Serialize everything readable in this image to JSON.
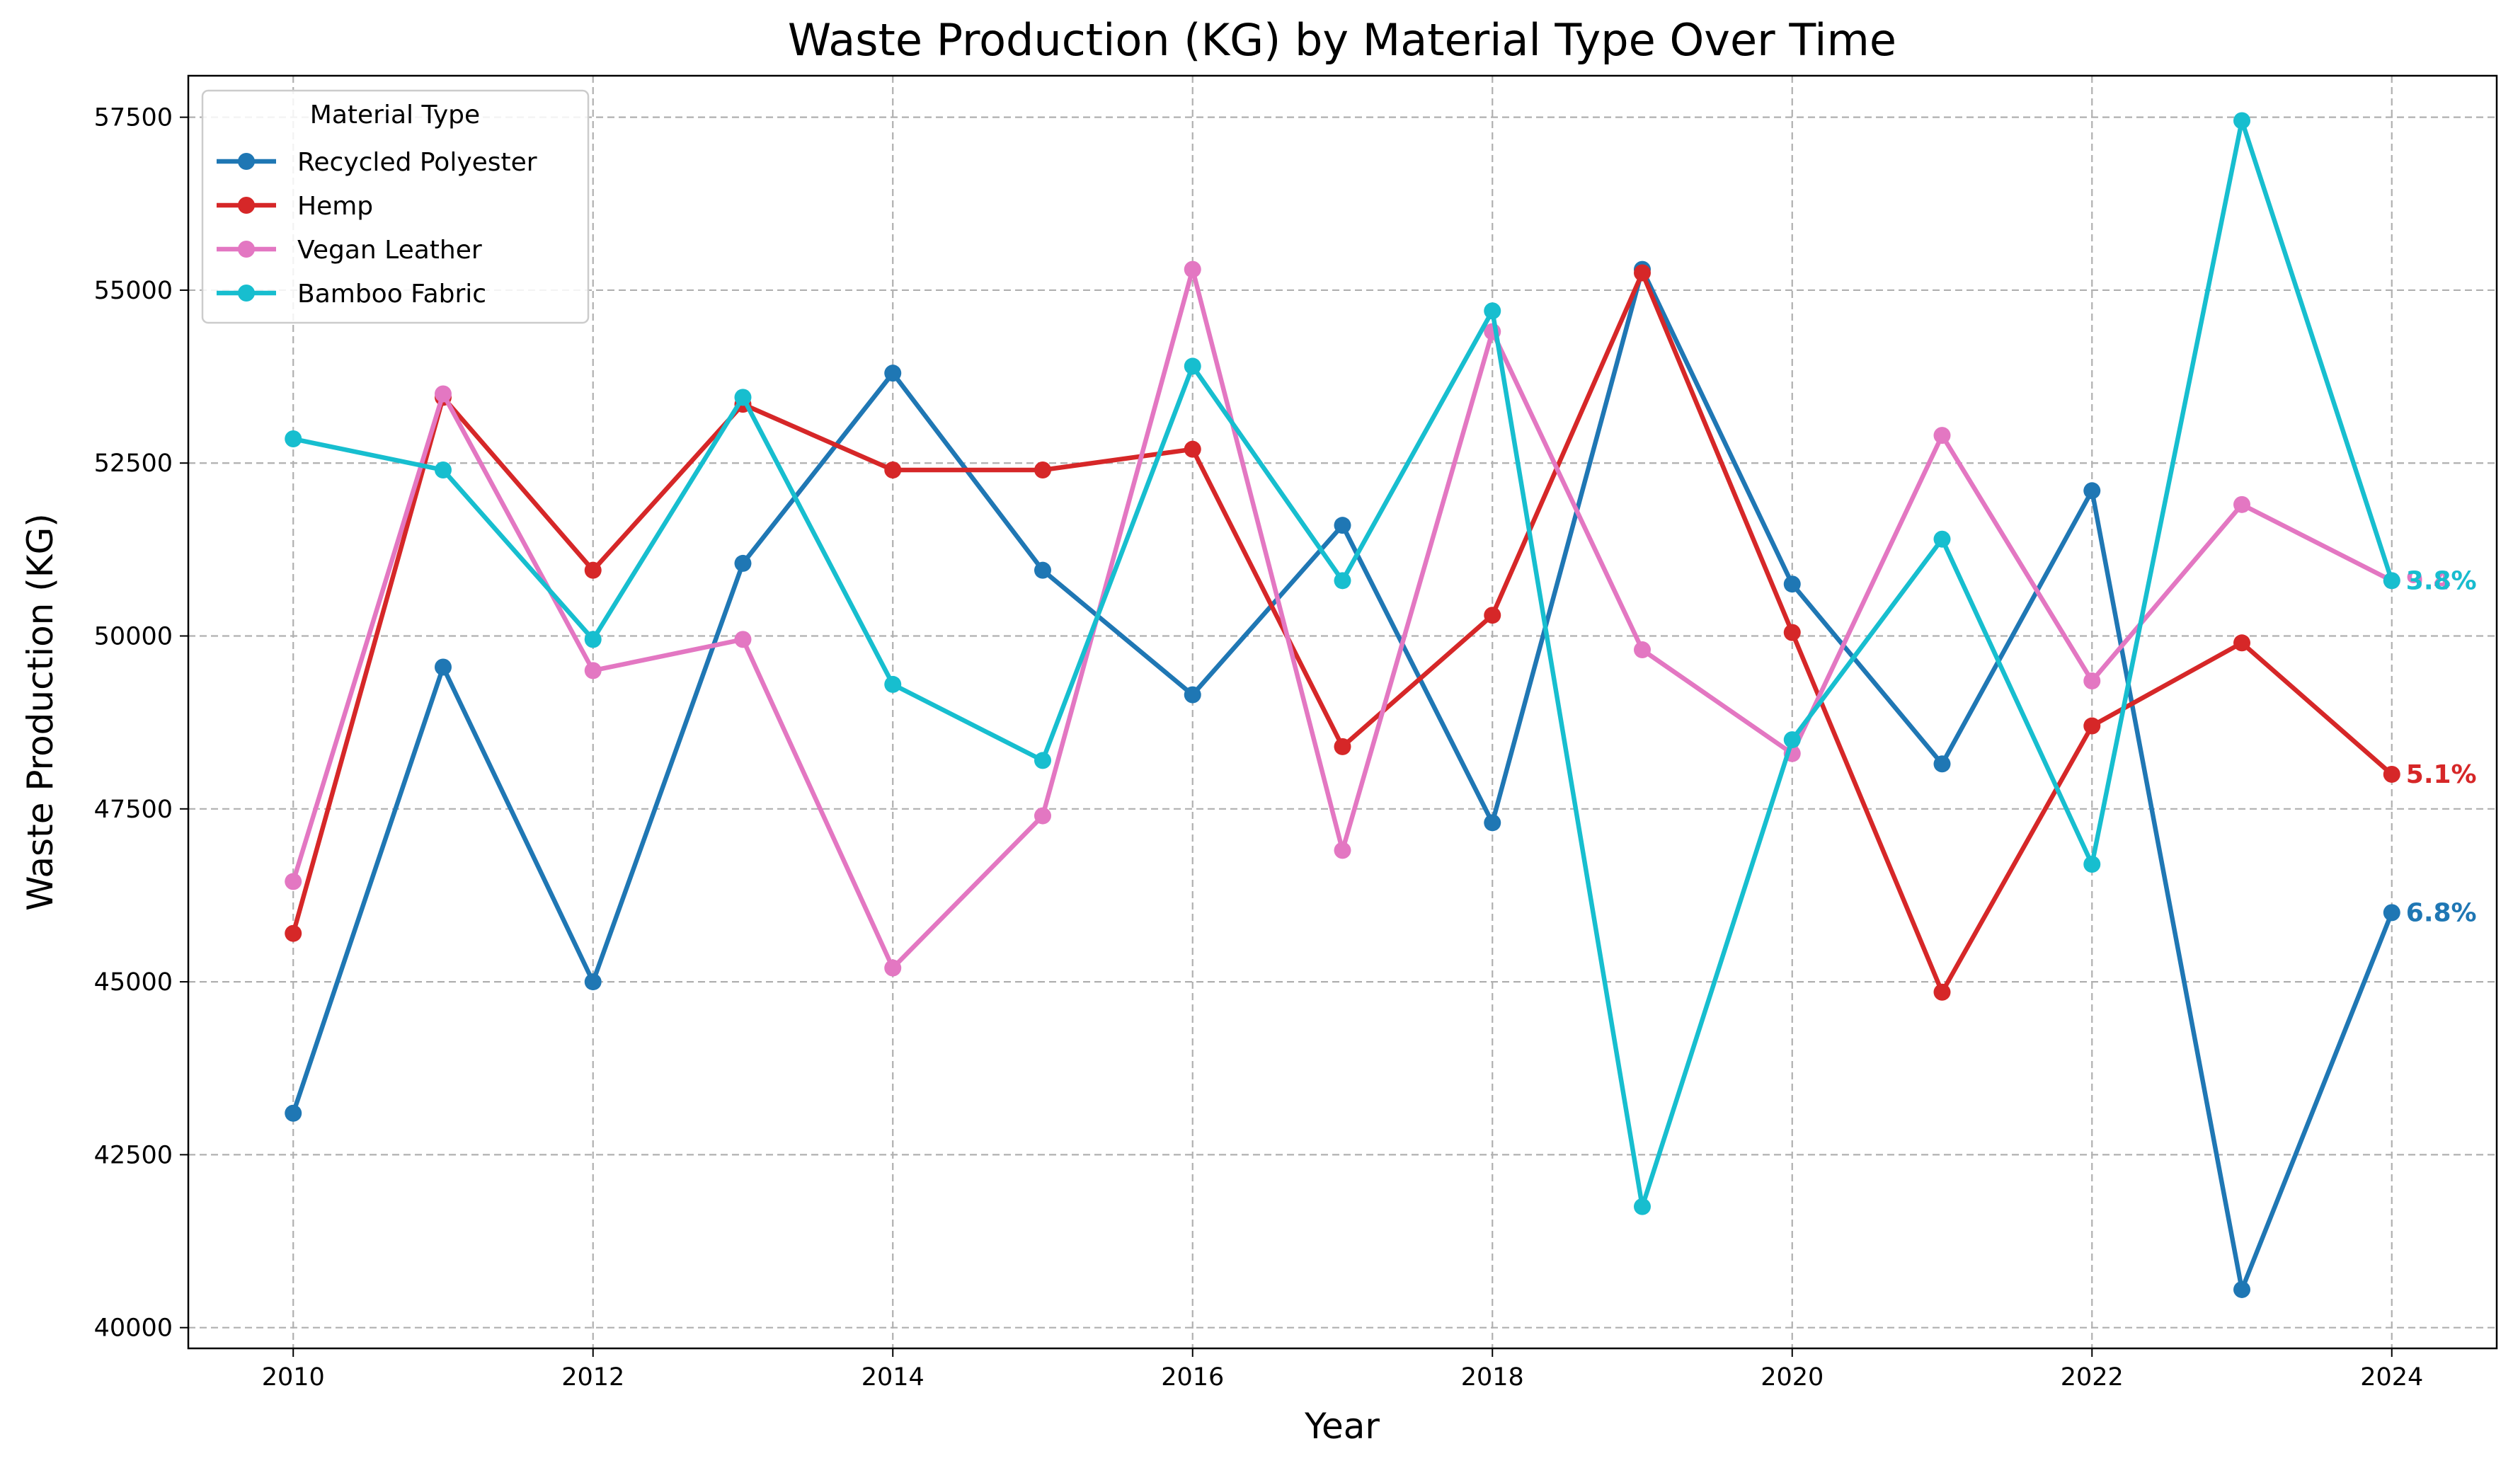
{
  "chart_data": {
    "type": "line",
    "title": "Waste Production (KG) by Material Type Over Time",
    "xlabel": "Year",
    "ylabel": "Waste Production (KG)",
    "x": [
      2010,
      2011,
      2012,
      2013,
      2014,
      2015,
      2016,
      2017,
      2018,
      2019,
      2020,
      2021,
      2022,
      2023,
      2024
    ],
    "xticks": [
      2010,
      2012,
      2014,
      2016,
      2018,
      2020,
      2022,
      2024
    ],
    "yticks": [
      40000,
      42500,
      45000,
      47500,
      50000,
      52500,
      55000,
      57500
    ],
    "xlim": [
      2009.3,
      2024.7
    ],
    "ylim": [
      39700,
      58100
    ],
    "grid": true,
    "legend": {
      "title": "Material Type",
      "placement": "top-left"
    },
    "series": [
      {
        "name": "Recycled Polyester",
        "color": "#1f77b4",
        "values": [
          43100,
          49550,
          45000,
          51050,
          53800,
          50950,
          49150,
          51600,
          47300,
          55300,
          50750,
          48150,
          52100,
          40550,
          46000
        ],
        "end_label": "6.8%"
      },
      {
        "name": "Hemp",
        "color": "#d62728",
        "values": [
          45700,
          53450,
          50950,
          53350,
          52400,
          52400,
          52700,
          48400,
          50300,
          55250,
          50050,
          44850,
          48700,
          49900,
          48000
        ],
        "end_label": "5.1%"
      },
      {
        "name": "Vegan Leather",
        "color": "#e377c2",
        "values": [
          46450,
          53500,
          49500,
          49950,
          45200,
          47400,
          55300,
          46900,
          54400,
          49800,
          48300,
          52900,
          49350,
          51900,
          50800
        ],
        "end_label": "9.4%"
      },
      {
        "name": "Bamboo Fabric",
        "color": "#17becf",
        "values": [
          52850,
          52400,
          49950,
          53450,
          49300,
          48200,
          53900,
          50800,
          54700,
          41750,
          48500,
          51400,
          46700,
          57450,
          50800
        ],
        "end_label": "3.8%"
      }
    ]
  }
}
